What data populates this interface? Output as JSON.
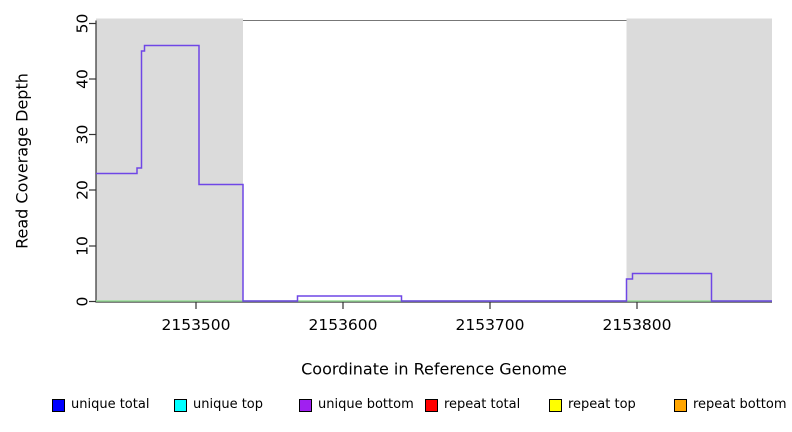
{
  "chart_data": {
    "type": "line",
    "subtype": "step-coverage-plot",
    "title": "",
    "xlabel": "Coordinate in Reference Genome",
    "ylabel": "Read Coverage Depth",
    "xlim": [
      2153432,
      2153892
    ],
    "ylim": [
      0,
      50.5
    ],
    "x_ticks": [
      2153500,
      2153600,
      2153700,
      2153800
    ],
    "y_ticks": [
      0,
      10,
      20,
      30,
      40,
      50
    ],
    "grid": false,
    "legend_position": "bottom",
    "colors": {
      "repeat_region_shading": "#dbdbdb",
      "coverage_line": "#6f46e6",
      "baseline_line": "#9ade9a",
      "axis": "#333333",
      "top_border": "#777777"
    },
    "coverage_steps": [
      {
        "start": 2153432,
        "end": 2153460,
        "depth": 23
      },
      {
        "start": 2153460,
        "end": 2153463,
        "depth": 24
      },
      {
        "start": 2153463,
        "end": 2153465,
        "depth": 45
      },
      {
        "start": 2153465,
        "end": 2153502,
        "depth": 46
      },
      {
        "start": 2153502,
        "end": 2153532,
        "depth": 21
      },
      {
        "start": 2153532,
        "end": 2153569,
        "depth": 0
      },
      {
        "start": 2153569,
        "end": 2153640,
        "depth": 1
      },
      {
        "start": 2153640,
        "end": 2153793,
        "depth": 0
      },
      {
        "start": 2153793,
        "end": 2153797,
        "depth": 4
      },
      {
        "start": 2153797,
        "end": 2153851,
        "depth": 5
      },
      {
        "start": 2153851,
        "end": 2153892,
        "depth": 0
      }
    ],
    "baseline_depth": 0,
    "repeat_regions": [
      {
        "start": 2153432,
        "end": 2153532
      },
      {
        "start": 2153793,
        "end": 2153892
      }
    ],
    "legend": [
      {
        "label": "unique total",
        "color": "#0000ff"
      },
      {
        "label": "unique top",
        "color": "#00ffff"
      },
      {
        "label": "unique bottom",
        "color": "#a020f0"
      },
      {
        "label": "repeat total",
        "color": "#ff0000"
      },
      {
        "label": "repeat top",
        "color": "#ffff00"
      },
      {
        "label": "repeat bottom",
        "color": "#ffa500"
      }
    ]
  }
}
